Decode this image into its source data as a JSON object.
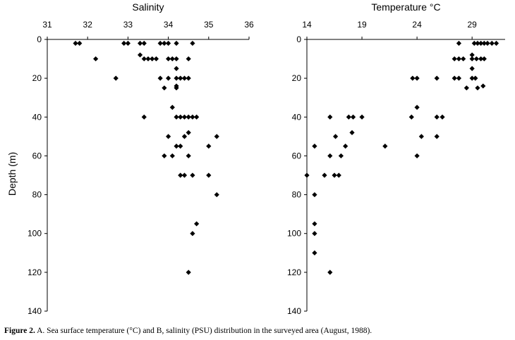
{
  "caption": {
    "label": "Figure 2.",
    "text": "A. Sea surface temperature (°C) and B, salinity (PSU) distribution in the surveyed area (August, 1988)."
  },
  "chart_data": [
    {
      "type": "scatter",
      "title": "Salinity",
      "xlabel": "",
      "ylabel": "Depth (m)",
      "xlim": [
        31,
        36
      ],
      "ylim": [
        0,
        140
      ],
      "y_inverted": true,
      "x_axis_position": "top",
      "x_ticks": [
        31,
        32,
        33,
        34,
        35,
        36
      ],
      "y_ticks": [
        0,
        20,
        40,
        60,
        80,
        100,
        120,
        140
      ],
      "grid": false,
      "marker": "diamond",
      "points": [
        [
          31.7,
          2
        ],
        [
          31.8,
          2
        ],
        [
          32.9,
          2
        ],
        [
          33.0,
          2
        ],
        [
          33.3,
          2
        ],
        [
          33.4,
          2
        ],
        [
          33.8,
          2
        ],
        [
          33.9,
          2
        ],
        [
          34.0,
          2
        ],
        [
          34.2,
          2
        ],
        [
          34.6,
          2
        ],
        [
          33.3,
          8
        ],
        [
          32.2,
          10
        ],
        [
          33.4,
          10
        ],
        [
          33.5,
          10
        ],
        [
          33.6,
          10
        ],
        [
          33.7,
          10
        ],
        [
          34.0,
          10
        ],
        [
          34.1,
          10
        ],
        [
          34.2,
          10
        ],
        [
          34.5,
          10
        ],
        [
          34.2,
          15
        ],
        [
          32.7,
          20
        ],
        [
          33.8,
          20
        ],
        [
          34.0,
          20
        ],
        [
          34.2,
          20
        ],
        [
          34.3,
          20
        ],
        [
          34.4,
          20
        ],
        [
          34.5,
          20
        ],
        [
          34.2,
          24
        ],
        [
          33.9,
          25
        ],
        [
          34.2,
          25
        ],
        [
          34.1,
          35
        ],
        [
          33.4,
          40
        ],
        [
          34.2,
          40
        ],
        [
          34.3,
          40
        ],
        [
          34.4,
          40
        ],
        [
          34.5,
          40
        ],
        [
          34.6,
          40
        ],
        [
          34.7,
          40
        ],
        [
          34.5,
          48
        ],
        [
          34.0,
          50
        ],
        [
          34.4,
          50
        ],
        [
          35.2,
          50
        ],
        [
          34.2,
          55
        ],
        [
          34.3,
          55
        ],
        [
          35.0,
          55
        ],
        [
          33.9,
          60
        ],
        [
          34.1,
          60
        ],
        [
          34.5,
          60
        ],
        [
          34.3,
          70
        ],
        [
          34.4,
          70
        ],
        [
          34.6,
          70
        ],
        [
          35.0,
          70
        ],
        [
          35.2,
          80
        ],
        [
          34.7,
          95
        ],
        [
          34.6,
          100
        ],
        [
          34.5,
          120
        ]
      ]
    },
    {
      "type": "scatter",
      "title": "Temperature °C",
      "xlabel": "",
      "ylabel": "",
      "xlim": [
        14,
        32
      ],
      "ylim": [
        0,
        140
      ],
      "y_inverted": true,
      "x_axis_position": "top",
      "x_ticks": [
        14,
        19,
        24,
        29
      ],
      "y_ticks": [
        0,
        20,
        40,
        60,
        80,
        100,
        120,
        140
      ],
      "grid": false,
      "marker": "diamond",
      "points": [
        [
          27.8,
          2
        ],
        [
          29.2,
          2
        ],
        [
          29.5,
          2
        ],
        [
          29.8,
          2
        ],
        [
          30.1,
          2
        ],
        [
          30.4,
          2
        ],
        [
          30.8,
          2
        ],
        [
          31.2,
          2
        ],
        [
          29.0,
          8
        ],
        [
          27.4,
          10
        ],
        [
          27.8,
          10
        ],
        [
          28.2,
          10
        ],
        [
          29.0,
          10
        ],
        [
          29.4,
          10
        ],
        [
          29.8,
          10
        ],
        [
          30.1,
          10
        ],
        [
          29.0,
          15
        ],
        [
          23.6,
          20
        ],
        [
          24.0,
          20
        ],
        [
          25.8,
          20
        ],
        [
          27.4,
          20
        ],
        [
          27.8,
          20
        ],
        [
          29.0,
          20
        ],
        [
          29.3,
          20
        ],
        [
          30.0,
          24
        ],
        [
          28.5,
          25
        ],
        [
          29.5,
          25
        ],
        [
          24.0,
          35
        ],
        [
          16.1,
          40
        ],
        [
          17.8,
          40
        ],
        [
          18.2,
          40
        ],
        [
          19.0,
          40
        ],
        [
          23.5,
          40
        ],
        [
          25.8,
          40
        ],
        [
          26.3,
          40
        ],
        [
          18.1,
          48
        ],
        [
          16.6,
          50
        ],
        [
          24.4,
          50
        ],
        [
          25.8,
          50
        ],
        [
          14.7,
          55
        ],
        [
          17.5,
          55
        ],
        [
          21.1,
          55
        ],
        [
          16.1,
          60
        ],
        [
          17.1,
          60
        ],
        [
          24.0,
          60
        ],
        [
          14.0,
          70
        ],
        [
          15.6,
          70
        ],
        [
          16.5,
          70
        ],
        [
          16.9,
          70
        ],
        [
          14.7,
          80
        ],
        [
          14.7,
          95
        ],
        [
          14.7,
          100
        ],
        [
          14.7,
          110
        ],
        [
          16.1,
          120
        ]
      ]
    }
  ]
}
